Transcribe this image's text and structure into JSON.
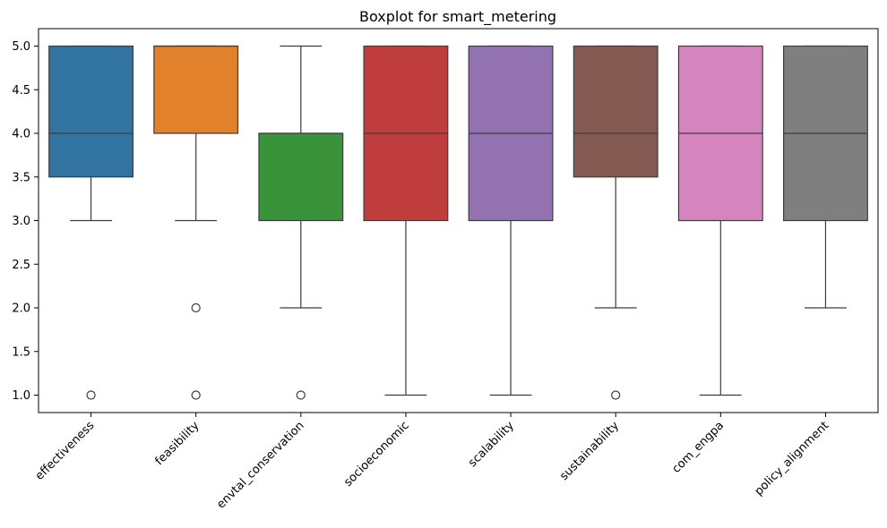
{
  "chart_data": {
    "type": "boxplot",
    "title": "Boxplot for smart_metering",
    "xlabel": "",
    "ylabel": "",
    "ylim": [
      0.8,
      5.2
    ],
    "yticks": [
      1.0,
      1.5,
      2.0,
      2.5,
      3.0,
      3.5,
      4.0,
      4.5,
      5.0
    ],
    "ytick_labels": [
      "1.0",
      "1.5",
      "2.0",
      "2.5",
      "3.0",
      "3.5",
      "4.0",
      "4.5",
      "5.0"
    ],
    "grid": false,
    "legend": "none",
    "categories": [
      "effectiveness",
      "feasibility",
      "envtal_conservation",
      "socioeconomic",
      "scalability",
      "sustainability",
      "com_engpa",
      "policy_alignment"
    ],
    "boxes": [
      {
        "category": "effectiveness",
        "color": "#3274a1",
        "whisker_low": 3.0,
        "q1": 3.5,
        "median": 4.0,
        "q3": 5.0,
        "whisker_high": 5.0,
        "outliers": [
          1.0
        ]
      },
      {
        "category": "feasibility",
        "color": "#e1812c",
        "whisker_low": 3.0,
        "q1": 4.0,
        "median": 5.0,
        "q3": 5.0,
        "whisker_high": 5.0,
        "outliers": [
          2.0,
          1.0
        ]
      },
      {
        "category": "envtal_conservation",
        "color": "#3a923a",
        "whisker_low": 2.0,
        "q1": 3.0,
        "median": 4.0,
        "q3": 4.0,
        "whisker_high": 5.0,
        "outliers": [
          1.0
        ]
      },
      {
        "category": "socioeconomic",
        "color": "#c03d3e",
        "whisker_low": 1.0,
        "q1": 3.0,
        "median": 4.0,
        "q3": 5.0,
        "whisker_high": 5.0,
        "outliers": []
      },
      {
        "category": "scalability",
        "color": "#9372b2",
        "whisker_low": 1.0,
        "q1": 3.0,
        "median": 4.0,
        "q3": 5.0,
        "whisker_high": 5.0,
        "outliers": []
      },
      {
        "category": "sustainability",
        "color": "#845b53",
        "whisker_low": 2.0,
        "q1": 3.5,
        "median": 4.0,
        "q3": 5.0,
        "whisker_high": 5.0,
        "outliers": [
          1.0
        ]
      },
      {
        "category": "com_engpa",
        "color": "#d684bd",
        "whisker_low": 1.0,
        "q1": 3.0,
        "median": 4.0,
        "q3": 5.0,
        "whisker_high": 5.0,
        "outliers": []
      },
      {
        "category": "policy_alignment",
        "color": "#7f7f7f",
        "whisker_low": 2.0,
        "q1": 3.0,
        "median": 4.0,
        "q3": 5.0,
        "whisker_high": 5.0,
        "outliers": []
      }
    ]
  }
}
